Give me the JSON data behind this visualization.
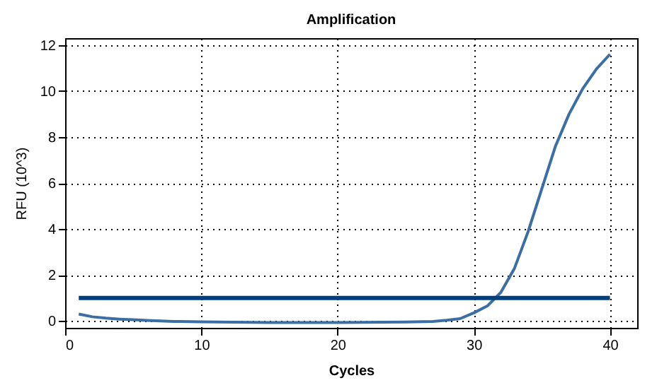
{
  "chart_data": {
    "type": "line",
    "title": "Amplification",
    "xlabel": "Cycles",
    "ylabel": "RFU (10^3)",
    "xlim": [
      0,
      42
    ],
    "xticks": [
      0,
      10,
      20,
      30,
      40
    ],
    "ylim": [
      -0.3,
      12.3
    ],
    "yticks": [
      0,
      2,
      4,
      6,
      8,
      10,
      12
    ],
    "grid": true,
    "marker": "none",
    "line_style": "solid",
    "series": [
      {
        "color": "#3a6ea5",
        "x": [
          1,
          2,
          3,
          4,
          5,
          6,
          8,
          10,
          15,
          20,
          25,
          27,
          28,
          29,
          30,
          31,
          32,
          33,
          34,
          35,
          36,
          37,
          38,
          39,
          40
        ],
        "values": [
          0.3,
          0.18,
          0.12,
          0.08,
          0.05,
          0.02,
          -0.02,
          -0.04,
          -0.07,
          -0.07,
          -0.05,
          -0.02,
          0.03,
          0.1,
          0.35,
          0.65,
          1.25,
          2.3,
          3.9,
          5.75,
          7.6,
          9.0,
          10.1,
          10.95,
          11.6
        ]
      },
      {
        "color": "#003f7f",
        "x": [
          1,
          40
        ],
        "values": [
          1,
          1
        ]
      }
    ]
  }
}
